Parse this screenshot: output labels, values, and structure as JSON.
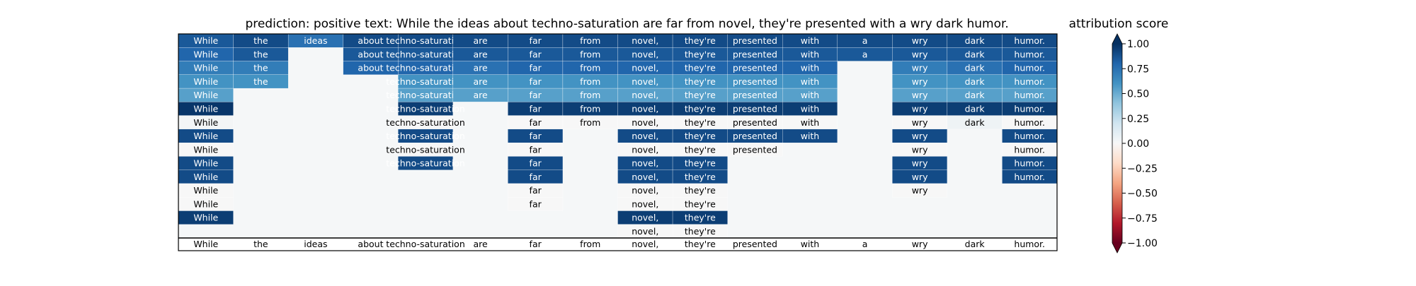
{
  "header": {
    "prediction": "prediction:  positive",
    "text": "text:  While the ideas about techno-saturation are far from novel, they're presented with a wry dark humor.",
    "colorbar_title": "attribution score"
  },
  "chart_data": {
    "type": "heatmap",
    "title": "text:  While the ideas about techno-saturation are far from novel, they're presented with a wry dark humor.",
    "columns": [
      "While",
      "the",
      "ideas",
      "about",
      "techno-saturation",
      "are",
      "far",
      "from",
      "novel,",
      "they're",
      "presented",
      "with",
      "a",
      "wry",
      "dark",
      "humor."
    ],
    "rows": [
      [
        0.85,
        0.9,
        0.75,
        0.9,
        0.9,
        0.9,
        0.9,
        0.9,
        0.9,
        0.9,
        0.9,
        0.9,
        0.9,
        0.9,
        0.9,
        0.9
      ],
      [
        0.8,
        0.85,
        null,
        0.85,
        0.85,
        0.85,
        0.85,
        0.85,
        0.85,
        0.85,
        0.85,
        0.85,
        0.85,
        0.85,
        0.85,
        0.85
      ],
      [
        0.7,
        0.7,
        null,
        0.8,
        0.8,
        0.75,
        0.8,
        0.8,
        0.8,
        0.8,
        0.8,
        0.8,
        null,
        0.7,
        0.75,
        0.8
      ],
      [
        0.6,
        0.6,
        null,
        null,
        0.6,
        0.6,
        0.6,
        0.6,
        0.6,
        0.6,
        0.6,
        0.6,
        null,
        0.6,
        0.6,
        0.6
      ],
      [
        0.55,
        null,
        null,
        null,
        0.55,
        0.55,
        0.55,
        0.55,
        0.55,
        0.55,
        0.55,
        0.55,
        null,
        0.55,
        0.55,
        0.55
      ],
      [
        0.98,
        null,
        null,
        null,
        0.95,
        null,
        0.95,
        0.95,
        0.95,
        0.95,
        0.95,
        0.95,
        null,
        0.95,
        0.95,
        0.95
      ],
      [
        0.02,
        null,
        null,
        null,
        0.0,
        null,
        0.0,
        0.0,
        0.0,
        0.0,
        0.0,
        0.0,
        null,
        0.0,
        0.05,
        0.0
      ],
      [
        0.9,
        null,
        null,
        null,
        0.9,
        null,
        0.9,
        null,
        0.9,
        0.9,
        0.9,
        0.9,
        null,
        0.9,
        null,
        0.9
      ],
      [
        0.0,
        null,
        null,
        null,
        0.0,
        null,
        0.0,
        null,
        0.0,
        0.0,
        0.0,
        null,
        null,
        0.0,
        null,
        0.0
      ],
      [
        0.9,
        null,
        null,
        null,
        0.9,
        null,
        0.9,
        null,
        0.9,
        0.9,
        null,
        null,
        null,
        0.9,
        null,
        0.9
      ],
      [
        0.9,
        null,
        null,
        null,
        null,
        null,
        0.9,
        null,
        0.9,
        0.9,
        null,
        null,
        null,
        0.9,
        null,
        0.9
      ],
      [
        0.0,
        null,
        null,
        null,
        null,
        null,
        0.0,
        null,
        0.0,
        0.0,
        null,
        null,
        null,
        0.0,
        null,
        null
      ],
      [
        0.0,
        null,
        null,
        null,
        null,
        null,
        0.0,
        null,
        0.0,
        0.0,
        null,
        null,
        null,
        null,
        null,
        null
      ],
      [
        0.95,
        null,
        null,
        null,
        null,
        null,
        null,
        null,
        0.95,
        0.95,
        null,
        null,
        null,
        null,
        null,
        null
      ],
      [
        null,
        null,
        null,
        null,
        null,
        null,
        null,
        null,
        0.0,
        0.0,
        null,
        null,
        null,
        null,
        null,
        null
      ]
    ],
    "colorbar": {
      "label": "attribution score",
      "range": [
        -1.0,
        1.0
      ],
      "ticks": [
        "1.00",
        "0.75",
        "0.50",
        "0.25",
        "0.00",
        "−0.25",
        "−0.50",
        "−0.75",
        "−1.00"
      ],
      "colormap": "RdBu",
      "extend": "both"
    },
    "colors": {
      "empty_cell": "#f5f7f8",
      "grid_line": "#ffffff",
      "dark_text": "#000000",
      "light_text": "#ffffff"
    }
  }
}
